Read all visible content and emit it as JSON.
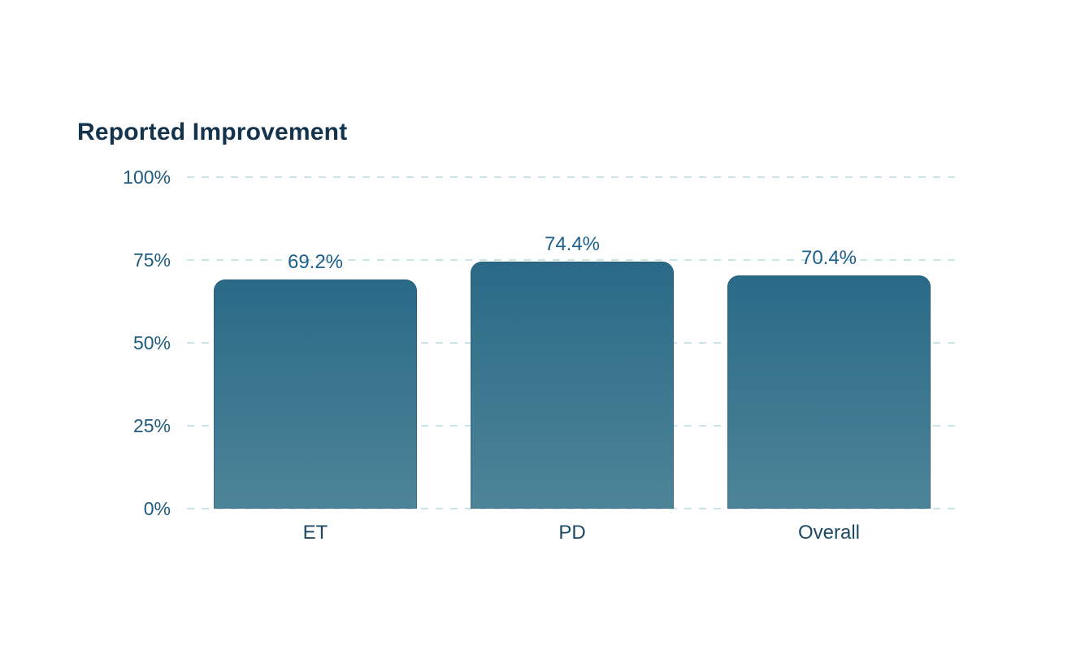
{
  "chart_data": {
    "type": "bar",
    "title": "Reported Improvement",
    "categories": [
      "ET",
      "PD",
      "Overall"
    ],
    "values": [
      69.2,
      74.4,
      70.4
    ],
    "value_labels": [
      "69.2%",
      "74.4%",
      "70.4%"
    ],
    "xlabel": "",
    "ylabel": "",
    "ylim": [
      0,
      100
    ],
    "yticks": [
      100,
      75,
      50,
      25,
      0
    ],
    "ytick_labels": [
      "100%",
      "75%",
      "50%",
      "25%",
      "0%"
    ],
    "grid": "horizontal-dashed",
    "legend": "none",
    "colors": {
      "bar_gradient_top": "#2a6a87",
      "bar_gradient_bottom": "#4d8498",
      "gridline": "#c9e5e9",
      "title_text": "#14334d",
      "tick_text": "#1f5b7e",
      "value_text": "#1e608a",
      "category_text": "#1c4a63",
      "background": "#ffffff"
    }
  }
}
